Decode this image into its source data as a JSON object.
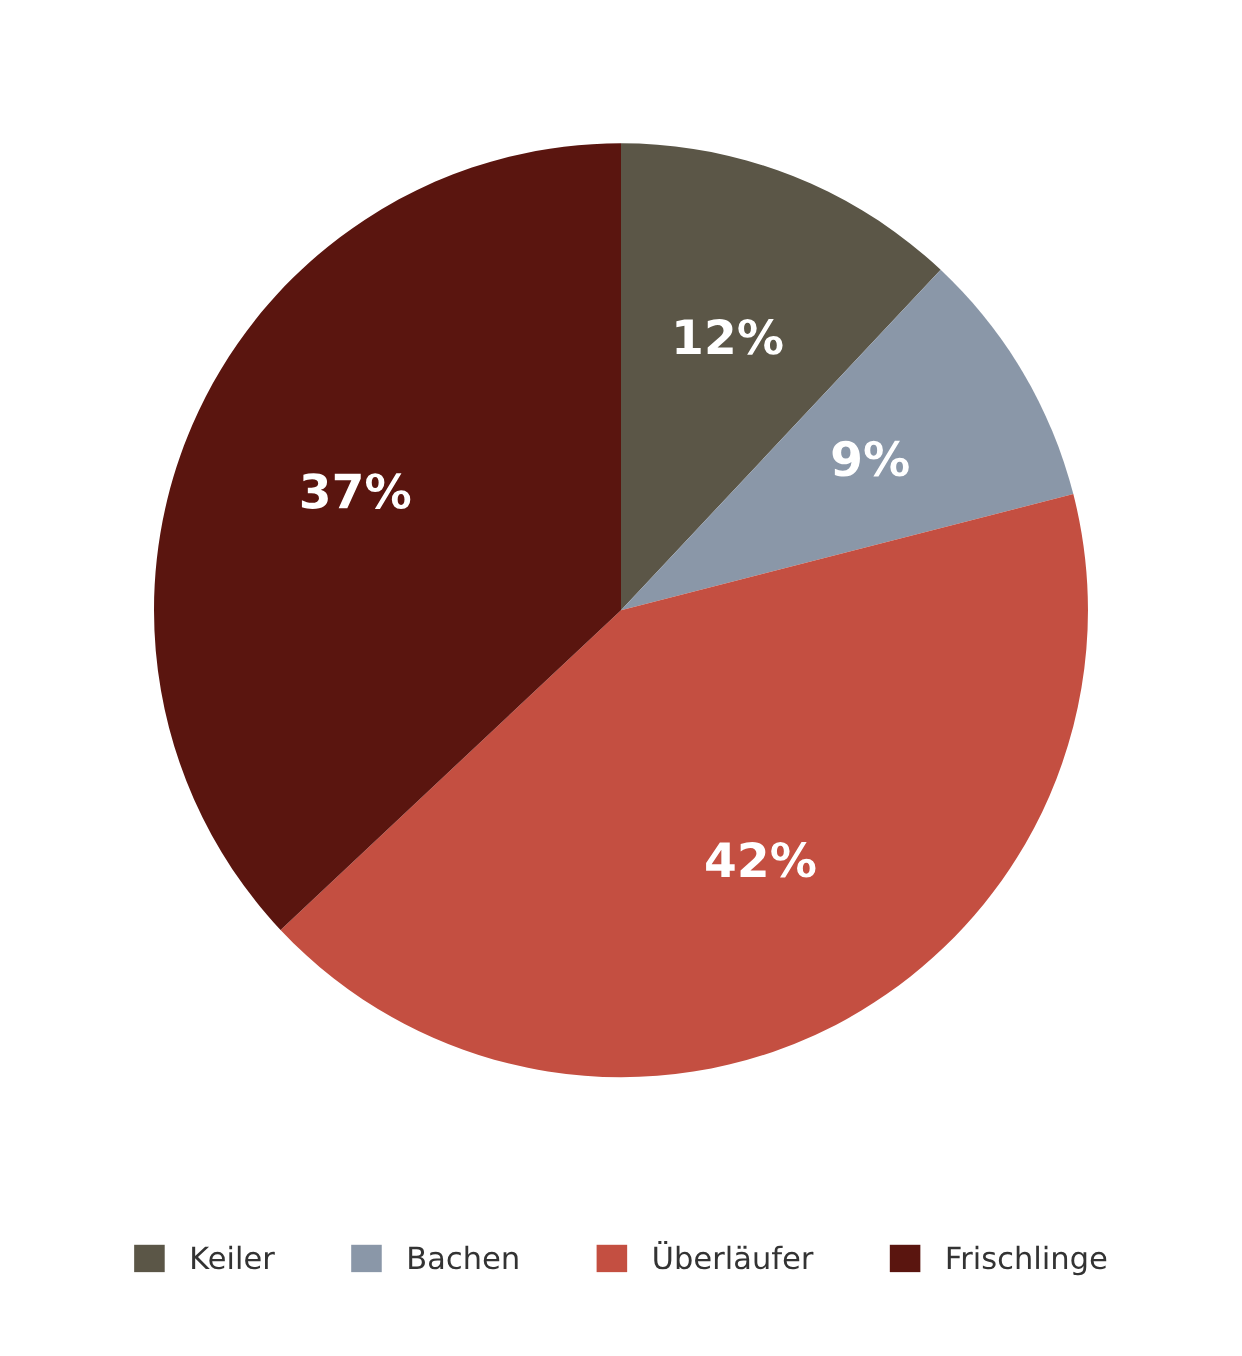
{
  "chart_data": {
    "type": "pie",
    "categories": [
      "Keiler",
      "Bachen",
      "Überläufer",
      "Frischlinge"
    ],
    "values": [
      12,
      9,
      42,
      37
    ],
    "colors": [
      "#5b5647",
      "#8a97a8",
      "#c44f41",
      "#5a150f"
    ],
    "value_labels": [
      "12%",
      "9%",
      "42%",
      "37%"
    ],
    "legend": "bottom"
  }
}
